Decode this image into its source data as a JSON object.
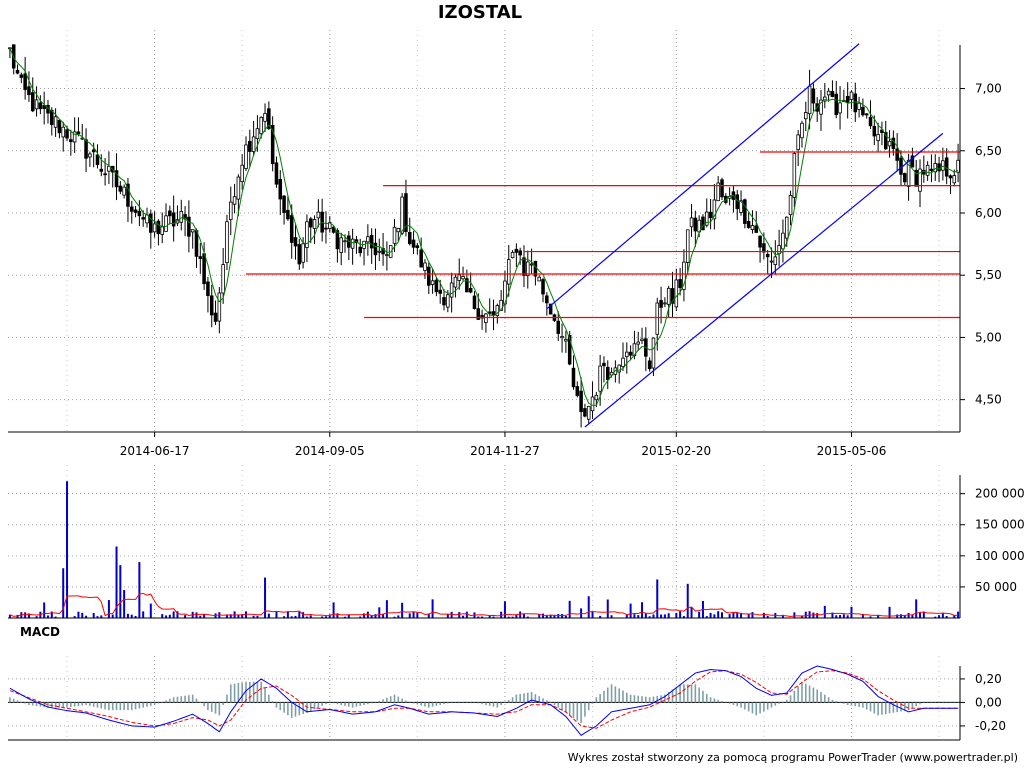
{
  "title": "IZOSTAL",
  "footer": "Wykres został stworzony za pomocą programu PowerTrader (www.powertrader.pl)",
  "colors": {
    "candle_up": "#ffffff",
    "candle_down": "#000000",
    "moving_average": "#008000",
    "trend_channel": "#0000ff",
    "support_resistance": "#ff0000",
    "volume_bars": "#0000cc",
    "volume_average": "#ff0000",
    "macd_line": "#0000ff",
    "signal_line": "#ff0000",
    "histogram": "#7f9fa7",
    "grid": "#a0a0a0"
  },
  "chart_data": [
    {
      "name": "price",
      "type": "candlestick",
      "title": "IZOSTAL",
      "x_ticks": [
        "2014-06-17",
        "2014-09-05",
        "2014-11-27",
        "2015-02-20",
        "2015-05-06"
      ],
      "y_ticks": [
        "4,50",
        "5,00",
        "5,50",
        "6,00",
        "6,50",
        "7,00"
      ],
      "ylim": [
        4.24,
        7.35
      ],
      "grid": true,
      "bars": 250,
      "overlays": {
        "moving_average": "green line following close",
        "horizontal_levels": [
          {
            "y": 6.49,
            "from_bar": 197
          },
          {
            "y": 6.22,
            "from_bar": 98
          },
          {
            "y": 5.69,
            "from_bar": 135
          },
          {
            "y": 5.51,
            "from_bar": 62
          },
          {
            "y": 5.16,
            "from_bar": 93
          }
        ],
        "channel_lines": [
          {
            "from": [
              151,
              4.28
            ],
            "to": [
              245,
              6.64
            ]
          },
          {
            "from": [
              141,
              5.23
            ],
            "to": [
              223,
              7.36
            ]
          }
        ]
      },
      "close_path": [
        [
          0,
          7.3
        ],
        [
          3,
          7.0
        ],
        [
          8,
          6.8
        ],
        [
          13,
          6.7
        ],
        [
          17,
          6.6
        ],
        [
          22,
          6.45
        ],
        [
          26,
          6.3
        ],
        [
          30,
          6.15
        ],
        [
          34,
          6.0
        ],
        [
          37,
          5.85
        ],
        [
          40,
          5.9
        ],
        [
          45,
          5.95
        ],
        [
          48,
          5.85
        ],
        [
          50,
          5.6
        ],
        [
          52,
          5.3
        ],
        [
          54,
          5.15
        ],
        [
          56,
          5.6
        ],
        [
          58,
          6.1
        ],
        [
          61,
          6.45
        ],
        [
          64,
          6.65
        ],
        [
          67,
          6.85
        ],
        [
          69,
          6.4
        ],
        [
          71,
          6.05
        ],
        [
          74,
          5.85
        ],
        [
          76,
          5.6
        ],
        [
          78,
          5.9
        ],
        [
          80,
          5.95
        ],
        [
          84,
          5.85
        ],
        [
          88,
          5.75
        ],
        [
          92,
          5.72
        ],
        [
          96,
          5.72
        ],
        [
          99,
          5.6
        ],
        [
          101,
          5.85
        ],
        [
          103,
          6.05
        ],
        [
          105,
          5.8
        ],
        [
          108,
          5.6
        ],
        [
          111,
          5.4
        ],
        [
          114,
          5.35
        ],
        [
          118,
          5.45
        ],
        [
          121,
          5.3
        ],
        [
          124,
          5.2
        ],
        [
          127,
          5.15
        ],
        [
          129,
          5.3
        ],
        [
          131,
          5.55
        ],
        [
          133,
          5.75
        ],
        [
          135,
          5.55
        ],
        [
          137,
          5.6
        ],
        [
          139,
          5.45
        ],
        [
          141,
          5.3
        ],
        [
          144,
          5.1
        ],
        [
          146,
          4.9
        ],
        [
          148,
          4.6
        ],
        [
          150,
          4.35
        ],
        [
          152,
          4.45
        ],
        [
          154,
          4.6
        ],
        [
          156,
          4.8
        ],
        [
          158,
          4.7
        ],
        [
          160,
          4.85
        ],
        [
          162,
          4.95
        ],
        [
          164,
          4.9
        ],
        [
          166,
          4.95
        ],
        [
          168,
          4.8
        ],
        [
          170,
          5.2
        ],
        [
          172,
          5.35
        ],
        [
          174,
          5.3
        ],
        [
          176,
          5.45
        ],
        [
          178,
          5.85
        ],
        [
          180,
          5.9
        ],
        [
          182,
          5.9
        ],
        [
          184,
          6.0
        ],
        [
          186,
          6.2
        ],
        [
          188,
          6.05
        ],
        [
          190,
          6.15
        ],
        [
          192,
          6.05
        ],
        [
          194,
          5.95
        ],
        [
          196,
          5.85
        ],
        [
          198,
          5.65
        ],
        [
          200,
          5.6
        ],
        [
          202,
          5.75
        ],
        [
          204,
          5.95
        ],
        [
          206,
          6.4
        ],
        [
          208,
          6.7
        ],
        [
          210,
          6.95
        ],
        [
          212,
          6.9
        ],
        [
          214,
          6.95
        ],
        [
          216,
          6.85
        ],
        [
          218,
          6.9
        ],
        [
          220,
          6.95
        ],
        [
          222,
          6.85
        ],
        [
          224,
          6.75
        ],
        [
          226,
          6.65
        ],
        [
          228,
          6.6
        ],
        [
          230,
          6.55
        ],
        [
          232,
          6.5
        ],
        [
          234,
          6.3
        ],
        [
          236,
          6.35
        ],
        [
          238,
          6.3
        ],
        [
          240,
          6.35
        ],
        [
          242,
          6.3
        ],
        [
          245,
          6.35
        ],
        [
          247,
          6.35
        ],
        [
          249,
          6.35
        ]
      ]
    },
    {
      "name": "volume",
      "type": "bar",
      "y_ticks": [
        "50 000",
        "100 000",
        "150 000",
        "200 000"
      ],
      "ylim": [
        0,
        230000
      ],
      "grid": true,
      "notable_bars": [
        {
          "bar": 15,
          "value": 220000
        },
        {
          "bar": 14,
          "value": 80000
        },
        {
          "bar": 28,
          "value": 115000
        },
        {
          "bar": 29,
          "value": 85000
        },
        {
          "bar": 34,
          "value": 90000
        },
        {
          "bar": 30,
          "value": 45000
        },
        {
          "bar": 9,
          "value": 25000
        },
        {
          "bar": 67,
          "value": 65000
        },
        {
          "bar": 111,
          "value": 30000
        },
        {
          "bar": 152,
          "value": 35000
        },
        {
          "bar": 170,
          "value": 62000
        },
        {
          "bar": 178,
          "value": 55000
        },
        {
          "bar": 221,
          "value": 18000
        },
        {
          "bar": 231,
          "value": 18000
        },
        {
          "bar": 238,
          "value": 30000
        }
      ],
      "volume_average": "red line (moving average of volume)"
    },
    {
      "name": "macd",
      "type": "line",
      "title": "MACD",
      "y_ticks": [
        "-0,20",
        "0,00",
        "0,20"
      ],
      "ylim": [
        -0.32,
        0.31
      ],
      "grid": true,
      "series": [
        {
          "name": "MACD",
          "points": [
            [
              0,
              0.12
            ],
            [
              5,
              0.03
            ],
            [
              10,
              -0.04
            ],
            [
              15,
              -0.07
            ],
            [
              20,
              -0.09
            ],
            [
              26,
              -0.15
            ],
            [
              32,
              -0.2
            ],
            [
              38,
              -0.21
            ],
            [
              43,
              -0.16
            ],
            [
              48,
              -0.1
            ],
            [
              52,
              -0.18
            ],
            [
              55,
              -0.25
            ],
            [
              58,
              -0.08
            ],
            [
              62,
              0.1
            ],
            [
              66,
              0.2
            ],
            [
              70,
              0.12
            ],
            [
              74,
              0.0
            ],
            [
              78,
              -0.08
            ],
            [
              84,
              -0.06
            ],
            [
              90,
              -0.1
            ],
            [
              96,
              -0.08
            ],
            [
              101,
              -0.02
            ],
            [
              105,
              -0.05
            ],
            [
              110,
              -0.1
            ],
            [
              116,
              -0.08
            ],
            [
              122,
              -0.09
            ],
            [
              128,
              -0.12
            ],
            [
              133,
              -0.05
            ],
            [
              137,
              0.02
            ],
            [
              142,
              -0.02
            ],
            [
              146,
              -0.12
            ],
            [
              150,
              -0.28
            ],
            [
              154,
              -0.2
            ],
            [
              158,
              -0.08
            ],
            [
              163,
              -0.05
            ],
            [
              168,
              -0.02
            ],
            [
              172,
              0.05
            ],
            [
              176,
              0.15
            ],
            [
              180,
              0.25
            ],
            [
              184,
              0.28
            ],
            [
              188,
              0.27
            ],
            [
              192,
              0.22
            ],
            [
              196,
              0.12
            ],
            [
              200,
              0.06
            ],
            [
              204,
              0.08
            ],
            [
              208,
              0.25
            ],
            [
              212,
              0.31
            ],
            [
              216,
              0.28
            ],
            [
              220,
              0.24
            ],
            [
              224,
              0.18
            ],
            [
              228,
              0.05
            ],
            [
              232,
              -0.02
            ],
            [
              236,
              -0.08
            ],
            [
              240,
              -0.05
            ],
            [
              245,
              -0.05
            ],
            [
              249,
              -0.05
            ]
          ]
        },
        {
          "name": "Signal",
          "points": [
            [
              0,
              0.1
            ],
            [
              5,
              0.04
            ],
            [
              10,
              -0.02
            ],
            [
              15,
              -0.05
            ],
            [
              20,
              -0.08
            ],
            [
              26,
              -0.12
            ],
            [
              32,
              -0.17
            ],
            [
              38,
              -0.2
            ],
            [
              43,
              -0.18
            ],
            [
              48,
              -0.13
            ],
            [
              52,
              -0.15
            ],
            [
              55,
              -0.2
            ],
            [
              58,
              -0.15
            ],
            [
              62,
              0.02
            ],
            [
              66,
              0.12
            ],
            [
              70,
              0.14
            ],
            [
              74,
              0.06
            ],
            [
              78,
              -0.04
            ],
            [
              84,
              -0.06
            ],
            [
              90,
              -0.08
            ],
            [
              96,
              -0.08
            ],
            [
              101,
              -0.05
            ],
            [
              105,
              -0.05
            ],
            [
              110,
              -0.08
            ],
            [
              116,
              -0.08
            ],
            [
              122,
              -0.09
            ],
            [
              128,
              -0.1
            ],
            [
              133,
              -0.08
            ],
            [
              137,
              -0.02
            ],
            [
              142,
              -0.02
            ],
            [
              146,
              -0.08
            ],
            [
              150,
              -0.2
            ],
            [
              154,
              -0.22
            ],
            [
              158,
              -0.15
            ],
            [
              163,
              -0.08
            ],
            [
              168,
              -0.04
            ],
            [
              172,
              0.02
            ],
            [
              176,
              0.08
            ],
            [
              180,
              0.18
            ],
            [
              184,
              0.26
            ],
            [
              188,
              0.27
            ],
            [
              192,
              0.24
            ],
            [
              196,
              0.17
            ],
            [
              200,
              0.08
            ],
            [
              204,
              0.07
            ],
            [
              208,
              0.17
            ],
            [
              212,
              0.26
            ],
            [
              216,
              0.27
            ],
            [
              220,
              0.25
            ],
            [
              224,
              0.2
            ],
            [
              228,
              0.1
            ],
            [
              232,
              0.02
            ],
            [
              236,
              -0.05
            ],
            [
              240,
              -0.05
            ],
            [
              245,
              -0.05
            ],
            [
              249,
              -0.05
            ]
          ]
        }
      ],
      "histogram": "MACD minus Signal, drawn as grey-blue bars"
    }
  ]
}
